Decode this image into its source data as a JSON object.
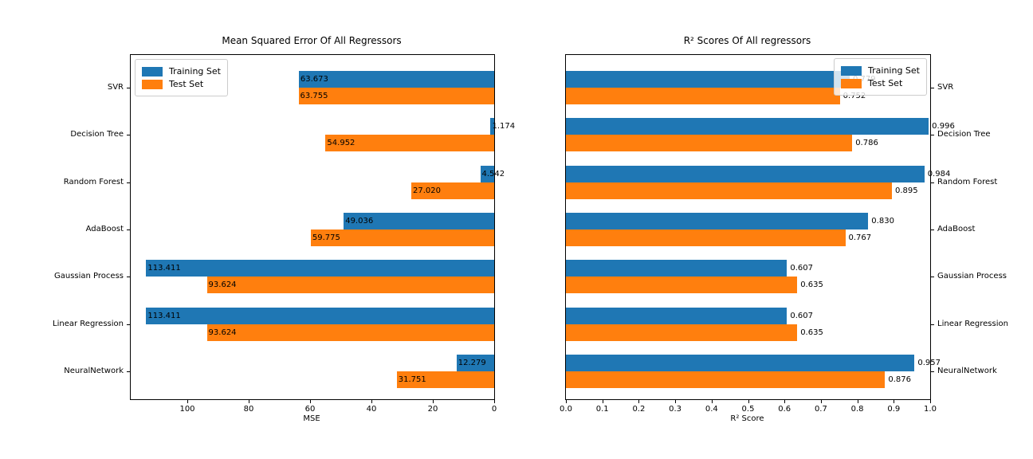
{
  "legend": {
    "items": [
      {
        "label": "Training Set",
        "color": "#1f77b4"
      },
      {
        "label": "Test Set",
        "color": "#ff7f0e"
      }
    ]
  },
  "chart_data": [
    {
      "type": "bar",
      "orientation": "horizontal",
      "title": "Mean Squared Error Of All Regressors",
      "xlabel": "MSE",
      "axis_reversed": true,
      "xlim": [
        118.4,
        0
      ],
      "grid": false,
      "legend_position": "upper left",
      "ylabels_side": "left",
      "xticks": [
        "100",
        "80",
        "60",
        "40",
        "20",
        "0"
      ],
      "categories": [
        "SVR",
        "Decision Tree",
        "Random Forest",
        "AdaBoost",
        "Gaussian Process",
        "Linear Regression",
        "NeuralNetwork"
      ],
      "series": [
        {
          "name": "Training Set",
          "color": "#1f77b4",
          "values": [
            63.673,
            1.174,
            4.542,
            49.036,
            113.411,
            113.411,
            12.279
          ],
          "labels": [
            "63.673",
            "1.174",
            "4.542",
            "49.036",
            "113.411",
            "113.411",
            "12.279"
          ]
        },
        {
          "name": "Test Set",
          "color": "#ff7f0e",
          "values": [
            63.755,
            54.952,
            27.02,
            59.775,
            93.624,
            93.624,
            31.751
          ],
          "labels": [
            "63.755",
            "54.952",
            "27.020",
            "59.775",
            "93.624",
            "93.624",
            "31.751"
          ]
        }
      ]
    },
    {
      "type": "bar",
      "orientation": "horizontal",
      "title": "R² Scores Of All regressors",
      "xlabel": "R² Score",
      "axis_reversed": false,
      "xlim": [
        0.0,
        1.0
      ],
      "grid": false,
      "legend_position": "upper right",
      "ylabels_side": "right",
      "xticks": [
        "0.0",
        "0.1",
        "0.2",
        "0.3",
        "0.4",
        "0.5",
        "0.6",
        "0.7",
        "0.8",
        "0.9",
        "1.0"
      ],
      "categories": [
        "SVR",
        "Decision Tree",
        "Random Forest",
        "AdaBoost",
        "Gaussian Process",
        "Linear Regression",
        "NeuralNetwork"
      ],
      "series": [
        {
          "name": "Training Set",
          "color": "#1f77b4",
          "values": [
            0.779,
            0.996,
            0.984,
            0.83,
            0.607,
            0.607,
            0.957
          ],
          "labels": [
            "0.779",
            "0.996",
            "0.984",
            "0.830",
            "0.607",
            "0.607",
            "0.957"
          ]
        },
        {
          "name": "Test Set",
          "color": "#ff7f0e",
          "values": [
            0.752,
            0.786,
            0.895,
            0.767,
            0.635,
            0.635,
            0.876
          ],
          "labels": [
            "0.752",
            "0.786",
            "0.895",
            "0.767",
            "0.635",
            "0.635",
            "0.876"
          ]
        }
      ]
    }
  ]
}
